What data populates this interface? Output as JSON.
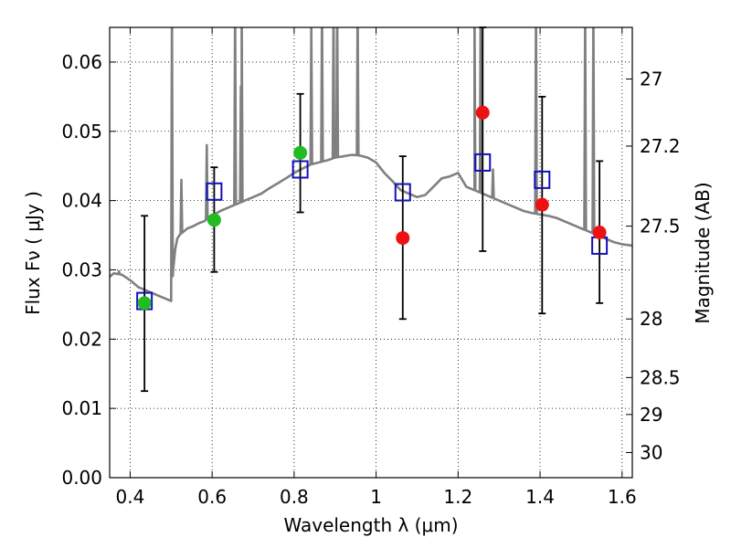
{
  "chart_data": {
    "type": "scatter",
    "xlabel": "Wavelength  λ (μm)",
    "ylabel": "Flux  Fν  ( μJy )",
    "y2label": "Magnitude (AB)",
    "xlim": [
      0.35,
      1.625
    ],
    "ylim": [
      0.0,
      0.065
    ],
    "grid": true,
    "x_ticks": [
      0.4,
      0.6,
      0.8,
      1.0,
      1.2,
      1.4,
      1.6
    ],
    "x_tick_labels": [
      "0.4",
      "0.6",
      "0.8",
      "1",
      "1.2",
      "1.4",
      "1.6"
    ],
    "y_ticks": [
      0.0,
      0.01,
      0.02,
      0.03,
      0.04,
      0.05,
      0.06
    ],
    "y_tick_labels": [
      "0.00",
      "0.01",
      "0.02",
      "0.03",
      "0.04",
      "0.05",
      "0.06"
    ],
    "y2_ticks": [
      27,
      27.2,
      27.5,
      28,
      28.5,
      29,
      30
    ],
    "y2_tick_labels": [
      "27",
      "27.2",
      "27.5",
      "28",
      "28.5",
      "29",
      "30"
    ],
    "colors": {
      "model": "#808080",
      "green": "#22bb22",
      "red": "#ee1111",
      "box": "#1111bb",
      "error": "#000000"
    },
    "model_spectrum": {
      "name": "",
      "x": [
        0.35,
        0.36,
        0.38,
        0.4,
        0.42,
        0.44,
        0.46,
        0.48,
        0.5,
        0.505,
        0.51,
        0.515,
        0.52,
        0.53,
        0.54,
        0.55,
        0.56,
        0.57,
        0.58,
        0.59,
        0.6,
        0.62,
        0.64,
        0.66,
        0.68,
        0.7,
        0.72,
        0.74,
        0.76,
        0.78,
        0.8,
        0.82,
        0.84,
        0.86,
        0.88,
        0.9,
        0.92,
        0.94,
        0.96,
        0.98,
        1.0,
        1.02,
        1.04,
        1.06,
        1.08,
        1.1,
        1.12,
        1.14,
        1.16,
        1.18,
        1.2,
        1.22,
        1.24,
        1.26,
        1.28,
        1.3,
        1.32,
        1.34,
        1.36,
        1.38,
        1.4,
        1.42,
        1.44,
        1.46,
        1.48,
        1.5,
        1.52,
        1.54,
        1.56,
        1.58,
        1.6,
        1.625
      ],
      "y": [
        0.029,
        0.0295,
        0.0293,
        0.0285,
        0.0275,
        0.027,
        0.0265,
        0.026,
        0.0255,
        0.03,
        0.033,
        0.0345,
        0.035,
        0.0355,
        0.036,
        0.0362,
        0.0365,
        0.0368,
        0.037,
        0.0374,
        0.0378,
        0.0385,
        0.039,
        0.0395,
        0.04,
        0.0405,
        0.041,
        0.0418,
        0.0425,
        0.0432,
        0.044,
        0.0446,
        0.0452,
        0.0455,
        0.0458,
        0.0462,
        0.0464,
        0.0466,
        0.0465,
        0.0462,
        0.0455,
        0.044,
        0.0428,
        0.0415,
        0.041,
        0.0405,
        0.0408,
        0.042,
        0.0432,
        0.0435,
        0.044,
        0.042,
        0.0415,
        0.041,
        0.0405,
        0.04,
        0.0395,
        0.039,
        0.0385,
        0.0382,
        0.038,
        0.0378,
        0.0375,
        0.037,
        0.0365,
        0.036,
        0.0355,
        0.035,
        0.0345,
        0.034,
        0.0337,
        0.0335
      ]
    },
    "emission_lines": [
      {
        "x": 0.373,
        "peak": 0.0298
      },
      {
        "x": 0.502,
        "peak": 0.068
      },
      {
        "x": 0.525,
        "peak": 0.043
      },
      {
        "x": 0.587,
        "peak": 0.048
      },
      {
        "x": 0.656,
        "peak": 0.068
      },
      {
        "x": 0.67,
        "peak": 0.0565
      },
      {
        "x": 0.672,
        "peak": 0.068
      },
      {
        "x": 0.842,
        "peak": 0.065
      },
      {
        "x": 0.868,
        "peak": 0.068
      },
      {
        "x": 0.896,
        "peak": 0.068
      },
      {
        "x": 0.905,
        "peak": 0.068
      },
      {
        "x": 0.955,
        "peak": 0.068
      },
      {
        "x": 1.24,
        "peak": 0.068
      },
      {
        "x": 1.255,
        "peak": 0.068
      },
      {
        "x": 1.285,
        "peak": 0.0445
      },
      {
        "x": 1.39,
        "peak": 0.068
      },
      {
        "x": 1.51,
        "peak": 0.068
      },
      {
        "x": 1.53,
        "peak": 0.068
      }
    ],
    "model_photometry": {
      "name": "",
      "x": [
        0.435,
        0.605,
        0.815,
        1.065,
        1.26,
        1.405,
        1.545
      ],
      "y": [
        0.0255,
        0.0413,
        0.0445,
        0.0412,
        0.0455,
        0.043,
        0.0335
      ]
    },
    "observed_green": {
      "name": "",
      "x": [
        0.435,
        0.605,
        0.815
      ],
      "y": [
        0.0252,
        0.0372,
        0.0469
      ],
      "err_low": [
        0.0125,
        0.0297,
        0.0383
      ],
      "err_high": [
        0.0378,
        0.0448,
        0.0554
      ]
    },
    "observed_red": {
      "name": "",
      "x": [
        1.065,
        1.26,
        1.405,
        1.545
      ],
      "y": [
        0.0346,
        0.0527,
        0.0394,
        0.0354
      ],
      "err_low": [
        0.0229,
        0.0327,
        0.0237,
        0.0252
      ],
      "err_high": [
        0.0464,
        0.065,
        0.055,
        0.0457
      ]
    }
  }
}
